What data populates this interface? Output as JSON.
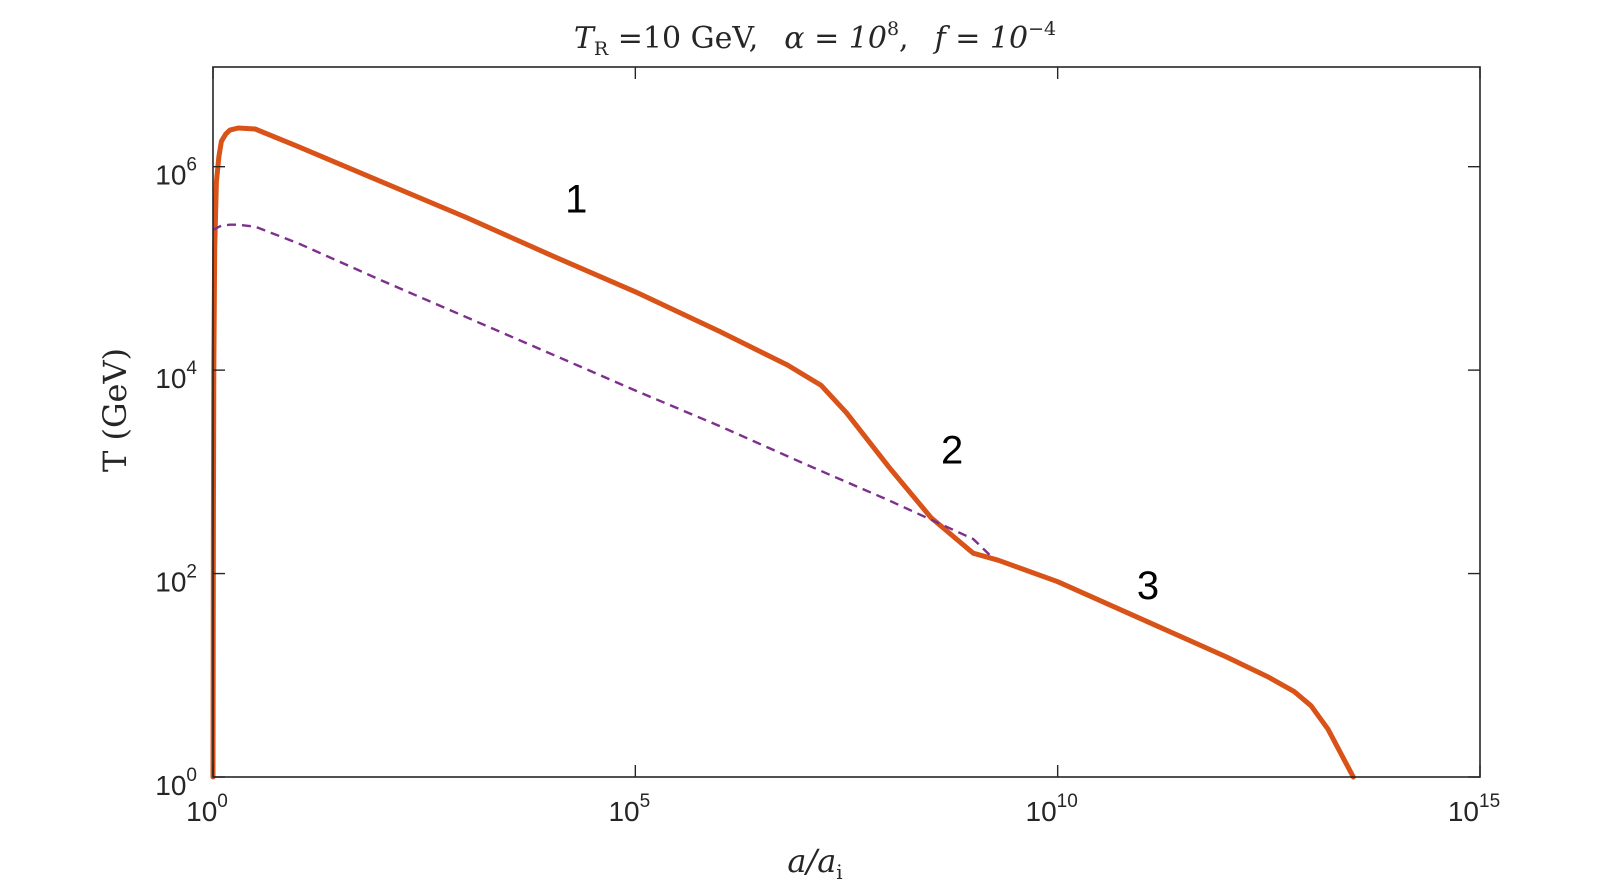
{
  "chart_data": {
    "type": "line",
    "title": {
      "prefix": "T",
      "prefix_sub": "R",
      "tr_value": " =10 GeV,",
      "alpha_text": "α = 10",
      "alpha_exp": "8",
      "alpha_sep": ",",
      "f_text": "f = 10",
      "f_exp": "−4"
    },
    "xlabel": {
      "text": "a/a",
      "sub": "i"
    },
    "ylabel": {
      "text": "T (GeV)"
    },
    "xscale": "log",
    "yscale": "log",
    "xlim": [
      1,
      1000000000000000.0
    ],
    "ylim": [
      1,
      1000000.0
    ],
    "ylim_top_exp": 6.98,
    "grid": false,
    "legend": "none",
    "x_ticks": [
      {
        "base": "10",
        "exp": "0",
        "value": 1
      },
      {
        "base": "10",
        "exp": "5",
        "value": 100000.0
      },
      {
        "base": "10",
        "exp": "10",
        "value": 10000000000.0
      },
      {
        "base": "10",
        "exp": "15",
        "value": 1000000000000000.0
      }
    ],
    "y_ticks": [
      {
        "base": "10",
        "exp": "0",
        "value": 1
      },
      {
        "base": "10",
        "exp": "2",
        "value": 100
      },
      {
        "base": "10",
        "exp": "4",
        "value": 10000
      },
      {
        "base": "10",
        "exp": "6",
        "value": 1000000
      }
    ],
    "series": [
      {
        "style": "solid",
        "color": "#D95319",
        "x_log10": [
          0,
          0.005,
          0.01,
          0.02,
          0.04,
          0.07,
          0.1,
          0.15,
          0.2,
          0.3,
          0.5,
          1,
          2,
          3,
          4,
          5,
          6,
          6.8,
          7.2,
          7.5,
          8,
          8.5,
          9,
          9.3,
          9.6,
          10,
          11,
          12,
          12.5,
          12.8,
          13,
          13.2,
          13.5
        ],
        "y_log10": [
          0,
          2.5,
          4.0,
          5.2,
          5.85,
          6.1,
          6.25,
          6.32,
          6.36,
          6.38,
          6.37,
          6.2,
          5.85,
          5.5,
          5.13,
          4.77,
          4.38,
          4.05,
          3.85,
          3.58,
          3.05,
          2.55,
          2.2,
          2.13,
          2.04,
          1.92,
          1.55,
          1.18,
          0.98,
          0.84,
          0.7,
          0.47,
          0.0
        ]
      },
      {
        "style": "dashed",
        "color": "#7E2F8E",
        "x_log10": [
          0,
          0.1,
          0.2,
          0.3,
          0.5,
          1,
          2,
          3,
          4,
          5,
          6,
          7,
          8,
          9,
          9.2
        ],
        "y_log10": [
          5.38,
          5.42,
          5.43,
          5.43,
          5.41,
          5.25,
          4.88,
          4.52,
          4.16,
          3.8,
          3.45,
          3.08,
          2.72,
          2.34,
          2.18
        ]
      }
    ],
    "annotations": [
      {
        "text": "1",
        "x_log10": 4.3,
        "y_log10": 5.55
      },
      {
        "text": "2",
        "x_log10": 8.75,
        "y_log10": 3.08
      },
      {
        "text": "3",
        "x_log10": 11.07,
        "y_log10": 1.75
      }
    ],
    "colors": {
      "series1": "#D95319",
      "series2": "#7E2F8E",
      "axes": "#262626"
    }
  }
}
